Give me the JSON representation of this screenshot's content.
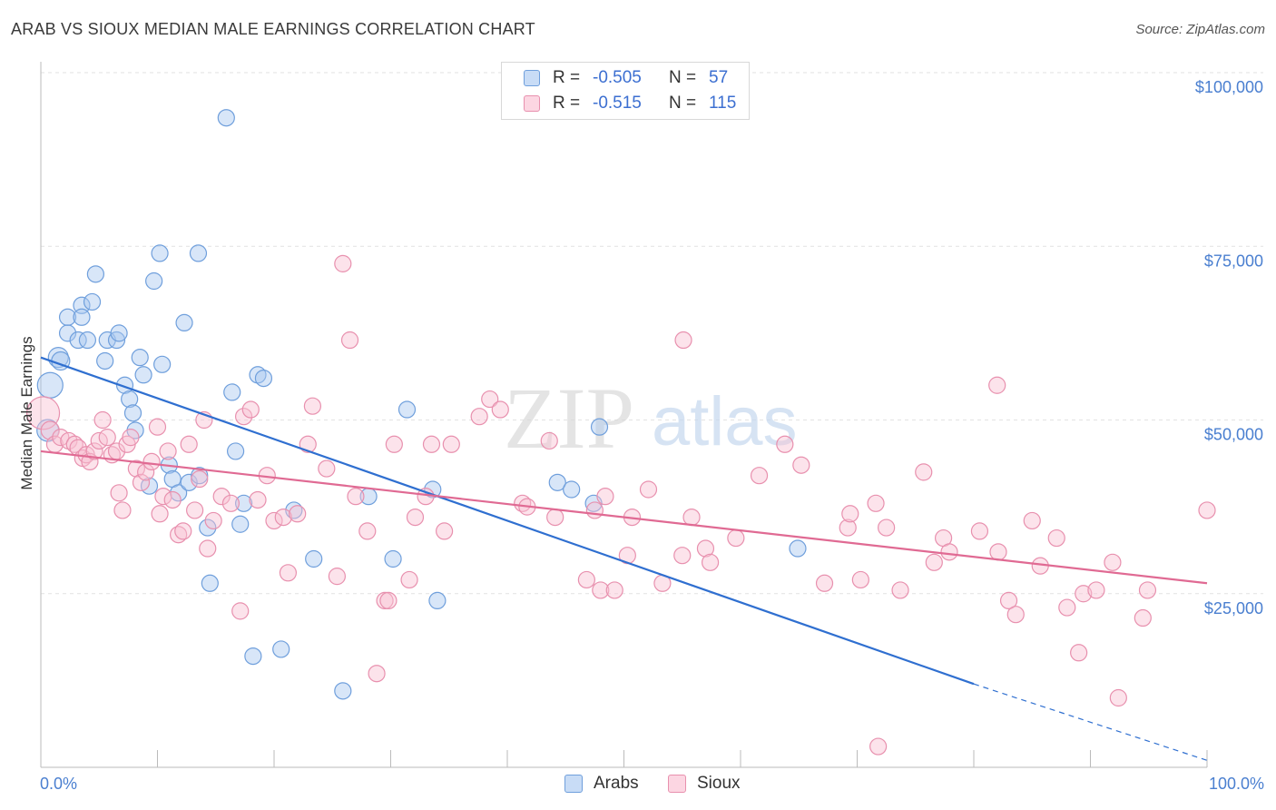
{
  "title": "ARAB VS SIOUX MEDIAN MALE EARNINGS CORRELATION CHART",
  "source": "Source: ZipAtlas.com",
  "watermark": {
    "zip": "ZIP",
    "atlas": "atlas"
  },
  "legend": {
    "rows": [
      {
        "r_label": "R =",
        "r_value": "-0.505",
        "n_label": "N =",
        "n_value": "57",
        "color": "#a9c8f0",
        "border": "#6f9fdc"
      },
      {
        "r_label": "R =",
        "r_value": "-0.515",
        "n_label": "N =",
        "n_value": "115",
        "color": "#f8c0d2",
        "border": "#e890ae"
      }
    ]
  },
  "bottom_legend": {
    "arabs": "Arabs",
    "sioux": "Sioux"
  },
  "chart_data": {
    "type": "scatter",
    "xlabel": "",
    "ylabel": "Median Male Earnings",
    "xlim": [
      0,
      100
    ],
    "ylim": [
      0,
      102000
    ],
    "x_tick_labels": {
      "left": "0.0%",
      "right": "100.0%"
    },
    "y_ticks": [
      {
        "value": 25000,
        "label": "$25,000"
      },
      {
        "value": 50000,
        "label": "$50,000"
      },
      {
        "value": 75000,
        "label": "$75,000"
      },
      {
        "value": 100000,
        "label": "$100,000"
      }
    ],
    "grid": true,
    "series": [
      {
        "name": "Arabs",
        "color": "#a9c8f0",
        "stroke": "#6f9fdc",
        "line_color": "#2f6fd0",
        "trend": {
          "x": [
            0,
            80
          ],
          "y": [
            59000,
            12000
          ],
          "dashed_to": [
            100,
            1000
          ]
        },
        "points": [
          [
            0.6,
            48500,
            12
          ],
          [
            0.8,
            55000,
            14
          ],
          [
            1.5,
            59000,
            11
          ],
          [
            1.7,
            58500,
            10
          ],
          [
            2.3,
            62500,
            9
          ],
          [
            2.3,
            64800,
            9
          ],
          [
            3.2,
            61500,
            9
          ],
          [
            3.5,
            66500,
            9
          ],
          [
            3.5,
            64800,
            9
          ],
          [
            4.0,
            61500,
            9
          ],
          [
            4.4,
            67000,
            9
          ],
          [
            4.7,
            71000,
            9
          ],
          [
            5.5,
            58500,
            9
          ],
          [
            5.7,
            61500,
            9
          ],
          [
            6.5,
            61500,
            9
          ],
          [
            6.7,
            62500,
            9
          ],
          [
            7.2,
            55000,
            9
          ],
          [
            7.6,
            53000,
            9
          ],
          [
            7.9,
            51000,
            9
          ],
          [
            8.1,
            48500,
            9
          ],
          [
            8.5,
            59000,
            9
          ],
          [
            8.8,
            56500,
            9
          ],
          [
            9.3,
            40500,
            9
          ],
          [
            9.7,
            70000,
            9
          ],
          [
            10.2,
            74000,
            9
          ],
          [
            10.4,
            58000,
            9
          ],
          [
            11.0,
            43500,
            9
          ],
          [
            11.3,
            41500,
            9
          ],
          [
            11.8,
            39500,
            9
          ],
          [
            12.3,
            64000,
            9
          ],
          [
            12.7,
            41000,
            9
          ],
          [
            13.5,
            74000,
            9
          ],
          [
            13.6,
            42000,
            9
          ],
          [
            14.3,
            34500,
            9
          ],
          [
            14.5,
            26500,
            9
          ],
          [
            15.9,
            93500,
            9
          ],
          [
            16.4,
            54000,
            9
          ],
          [
            16.7,
            45500,
            9
          ],
          [
            17.1,
            35000,
            9
          ],
          [
            17.4,
            38000,
            9
          ],
          [
            18.2,
            16000,
            9
          ],
          [
            18.6,
            56500,
            9
          ],
          [
            19.1,
            56000,
            9
          ],
          [
            20.6,
            17000,
            9
          ],
          [
            21.7,
            37000,
            9
          ],
          [
            23.4,
            30000,
            9
          ],
          [
            25.9,
            11000,
            9
          ],
          [
            28.1,
            39000,
            9
          ],
          [
            30.2,
            30000,
            9
          ],
          [
            31.4,
            51500,
            9
          ],
          [
            33.6,
            40000,
            9
          ],
          [
            34.0,
            24000,
            9
          ],
          [
            44.3,
            41000,
            9
          ],
          [
            45.5,
            40000,
            9
          ],
          [
            47.4,
            38000,
            9
          ],
          [
            47.9,
            49000,
            9
          ],
          [
            64.9,
            31500,
            9
          ]
        ]
      },
      {
        "name": "Sioux",
        "color": "#f8c0d2",
        "stroke": "#e890ae",
        "line_color": "#e06a93",
        "trend": {
          "x": [
            0,
            100
          ],
          "y": [
            45500,
            26500
          ]
        },
        "points": [
          [
            0.2,
            51000,
            18
          ],
          [
            0.8,
            48500,
            10
          ],
          [
            1.2,
            46500,
            9
          ],
          [
            1.7,
            47500,
            9
          ],
          [
            2.4,
            47000,
            9
          ],
          [
            2.9,
            46500,
            9
          ],
          [
            3.2,
            46000,
            9
          ],
          [
            3.6,
            44500,
            9
          ],
          [
            3.9,
            45000,
            9
          ],
          [
            4.2,
            44000,
            9
          ],
          [
            4.6,
            45500,
            9
          ],
          [
            5.0,
            47000,
            9
          ],
          [
            5.3,
            50000,
            9
          ],
          [
            5.7,
            47500,
            9
          ],
          [
            6.1,
            45000,
            9
          ],
          [
            6.5,
            45500,
            9
          ],
          [
            6.7,
            39500,
            9
          ],
          [
            7.0,
            37000,
            9
          ],
          [
            7.4,
            46500,
            9
          ],
          [
            7.7,
            47500,
            9
          ],
          [
            8.2,
            43000,
            9
          ],
          [
            8.6,
            41000,
            9
          ],
          [
            9.0,
            42500,
            9
          ],
          [
            9.5,
            44000,
            9
          ],
          [
            10.0,
            49000,
            9
          ],
          [
            10.2,
            36500,
            9
          ],
          [
            10.5,
            39000,
            9
          ],
          [
            10.9,
            45500,
            9
          ],
          [
            11.3,
            38500,
            9
          ],
          [
            11.8,
            33500,
            9
          ],
          [
            12.2,
            34000,
            9
          ],
          [
            12.7,
            46500,
            9
          ],
          [
            13.2,
            37000,
            9
          ],
          [
            13.6,
            41500,
            9
          ],
          [
            14.0,
            50000,
            9
          ],
          [
            14.3,
            31500,
            9
          ],
          [
            14.8,
            35500,
            9
          ],
          [
            15.5,
            39000,
            9
          ],
          [
            16.3,
            38000,
            9
          ],
          [
            17.1,
            22500,
            9
          ],
          [
            17.4,
            50500,
            9
          ],
          [
            18.0,
            51500,
            9
          ],
          [
            18.6,
            38500,
            9
          ],
          [
            19.4,
            42000,
            9
          ],
          [
            20.0,
            35500,
            9
          ],
          [
            20.8,
            36000,
            9
          ],
          [
            21.2,
            28000,
            9
          ],
          [
            22.0,
            36500,
            9
          ],
          [
            22.9,
            46500,
            9
          ],
          [
            23.3,
            52000,
            9
          ],
          [
            24.5,
            43000,
            9
          ],
          [
            25.4,
            27500,
            9
          ],
          [
            25.9,
            72500,
            9
          ],
          [
            26.5,
            61500,
            9
          ],
          [
            27.0,
            39000,
            9
          ],
          [
            28.0,
            34000,
            9
          ],
          [
            28.8,
            13500,
            9
          ],
          [
            29.5,
            24000,
            9
          ],
          [
            29.8,
            24000,
            9
          ],
          [
            30.3,
            46500,
            9
          ],
          [
            31.6,
            27000,
            9
          ],
          [
            32.1,
            36000,
            9
          ],
          [
            33.0,
            39000,
            9
          ],
          [
            33.5,
            46500,
            9
          ],
          [
            34.6,
            34000,
            9
          ],
          [
            35.2,
            46500,
            9
          ],
          [
            37.6,
            50500,
            9
          ],
          [
            38.5,
            53000,
            9
          ],
          [
            39.4,
            51500,
            9
          ],
          [
            41.3,
            38000,
            9
          ],
          [
            41.7,
            37500,
            9
          ],
          [
            43.6,
            47000,
            9
          ],
          [
            44.1,
            36000,
            9
          ],
          [
            46.8,
            27000,
            9
          ],
          [
            47.5,
            37000,
            9
          ],
          [
            48.0,
            25500,
            9
          ],
          [
            48.4,
            39000,
            9
          ],
          [
            49.2,
            25500,
            9
          ],
          [
            50.3,
            30500,
            9
          ],
          [
            50.7,
            36000,
            9
          ],
          [
            52.1,
            40000,
            9
          ],
          [
            53.3,
            26500,
            9
          ],
          [
            55.0,
            30500,
            9
          ],
          [
            55.1,
            61500,
            9
          ],
          [
            55.8,
            36000,
            9
          ],
          [
            57.0,
            31500,
            9
          ],
          [
            57.4,
            29500,
            9
          ],
          [
            59.6,
            33000,
            9
          ],
          [
            61.6,
            42000,
            9
          ],
          [
            63.8,
            46500,
            9
          ],
          [
            65.2,
            43500,
            9
          ],
          [
            67.2,
            26500,
            9
          ],
          [
            69.2,
            34500,
            9
          ],
          [
            69.4,
            36500,
            9
          ],
          [
            70.3,
            27000,
            9
          ],
          [
            71.6,
            38000,
            9
          ],
          [
            71.8,
            3000,
            9
          ],
          [
            72.5,
            34500,
            9
          ],
          [
            73.7,
            25500,
            9
          ],
          [
            75.7,
            42500,
            9
          ],
          [
            76.6,
            29500,
            9
          ],
          [
            77.4,
            33000,
            9
          ],
          [
            77.9,
            31000,
            9
          ],
          [
            80.5,
            34000,
            9
          ],
          [
            82.0,
            55000,
            9
          ],
          [
            82.1,
            31000,
            9
          ],
          [
            83.0,
            24000,
            9
          ],
          [
            83.6,
            22000,
            9
          ],
          [
            85.0,
            35500,
            9
          ],
          [
            85.7,
            29000,
            9
          ],
          [
            87.1,
            33000,
            9
          ],
          [
            88.0,
            23000,
            9
          ],
          [
            89.0,
            16500,
            9
          ],
          [
            89.4,
            25000,
            9
          ],
          [
            90.5,
            25500,
            9
          ],
          [
            91.9,
            29500,
            9
          ],
          [
            92.4,
            10000,
            9
          ],
          [
            94.5,
            21500,
            9
          ],
          [
            94.9,
            25500,
            9
          ],
          [
            100.0,
            37000,
            9
          ]
        ]
      }
    ]
  }
}
